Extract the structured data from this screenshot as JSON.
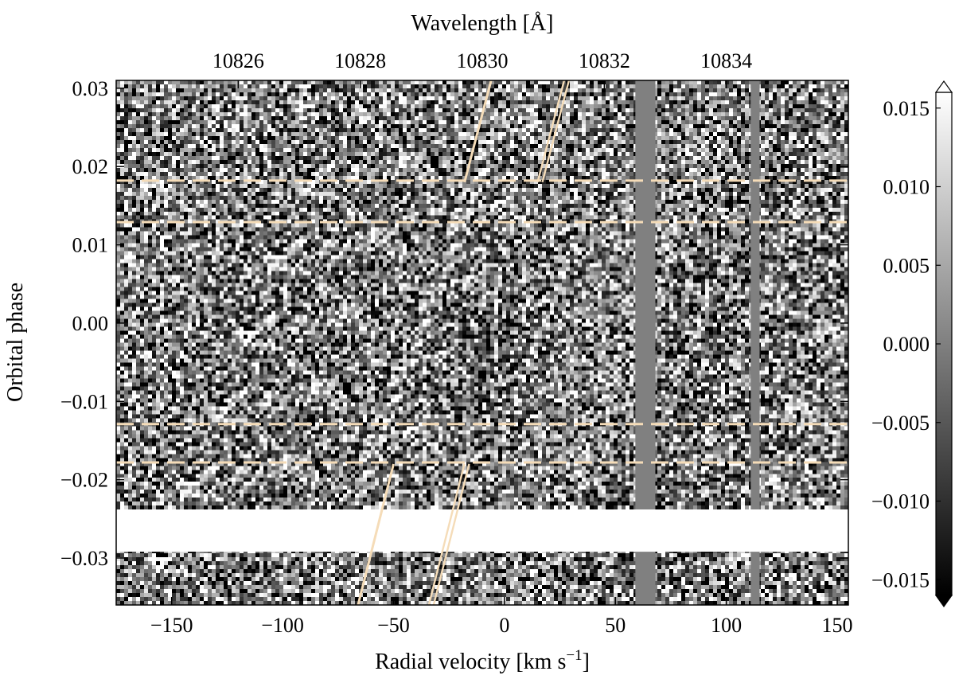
{
  "chart_data": {
    "type": "heatmap",
    "title": "",
    "xlabel": "Radial velocity [km s",
    "xlabel_sup": "−1",
    "xlabel_end": "]",
    "x2label": "Wavelength [Å]",
    "ylabel": "Orbital phase",
    "xlim": [
      -175,
      155
    ],
    "ylim": [
      -0.036,
      0.031
    ],
    "x_ticks": [
      -150,
      -100,
      -50,
      0,
      50,
      100,
      150
    ],
    "x_tick_labels": [
      "−150",
      "−100",
      "−50",
      "0",
      "50",
      "100",
      "150"
    ],
    "y_ticks": [
      -0.03,
      -0.02,
      -0.01,
      0.0,
      0.01,
      0.02,
      0.03
    ],
    "y_tick_labels": [
      "−0.03",
      "−0.02",
      "−0.01",
      "0.00",
      "0.01",
      "0.02",
      "0.03"
    ],
    "wavelength_ticks_velocity": [
      -120,
      -65,
      -10,
      45,
      100
    ],
    "wavelength_tick_labels": [
      "10826",
      "10828",
      "10830",
      "10832",
      "10834"
    ],
    "colorbar": {
      "range": [
        -0.016,
        0.016
      ],
      "ticks": [
        -0.015,
        -0.01,
        -0.005,
        0.0,
        0.005,
        0.01,
        0.015
      ],
      "tick_labels": [
        "−0.015",
        "−0.010",
        "−0.005",
        "0.000",
        "0.005",
        "0.010",
        "0.015"
      ],
      "extend": "both",
      "colormap": "greyscale"
    },
    "masked_velocity_bands": [
      [
        59,
        68
      ],
      [
        111,
        115
      ]
    ],
    "masked_color": "#808080",
    "gap_phase_range": [
      -0.0292,
      -0.0238
    ],
    "gap_color": "#ffffff",
    "contact_phases": [
      -0.0178,
      -0.0129,
      0.0129,
      0.0182
    ],
    "overlay_color": "#f5dcb8",
    "trail_lines": [
      {
        "kind": "single",
        "v_start": -18,
        "phase_start": 0.018,
        "v_end": -6,
        "phase_end": 0.031
      },
      {
        "kind": "double",
        "v_start": 16,
        "phase_start": 0.018,
        "v_end": 28,
        "phase_end": 0.031
      },
      {
        "kind": "single",
        "v_start": -50,
        "phase_start": -0.018,
        "v_end": -66,
        "phase_end": -0.036
      },
      {
        "kind": "double",
        "v_start": -17,
        "phase_start": -0.018,
        "v_end": -33,
        "phase_end": -0.036
      }
    ],
    "absorption_feature": {
      "v_center": -10,
      "phase_center": -0.004,
      "v_width": 18,
      "phase_width": 0.008
    }
  }
}
